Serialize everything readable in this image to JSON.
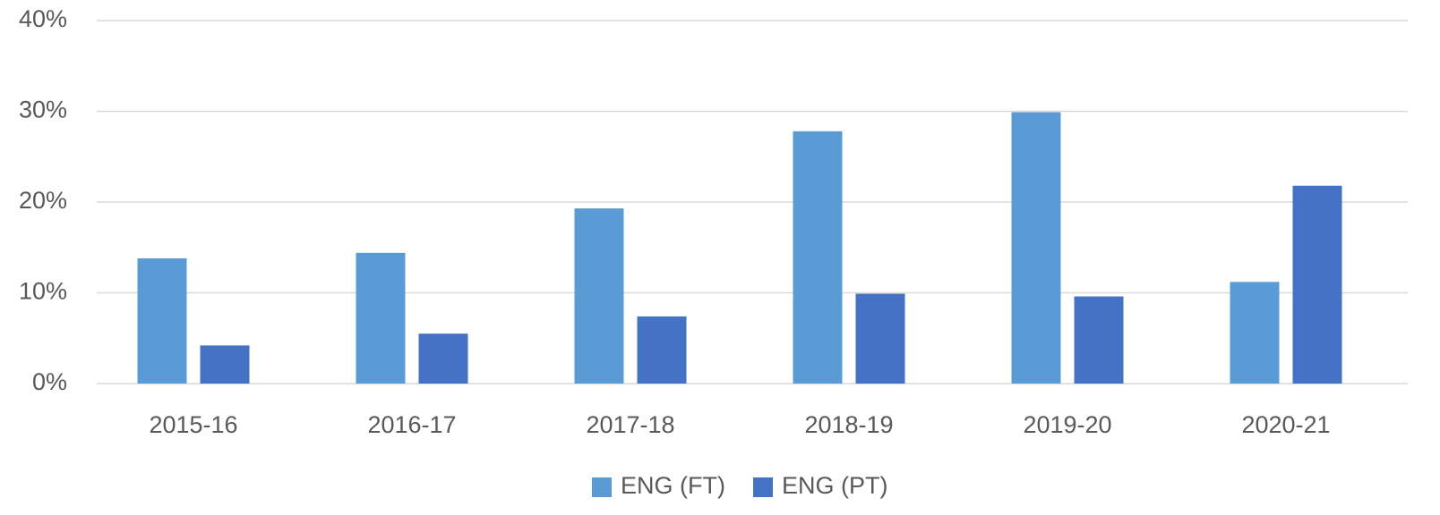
{
  "chart_data": {
    "type": "bar",
    "categories": [
      "2015-16",
      "2016-17",
      "2017-18",
      "2018-19",
      "2019-20",
      "2020-21"
    ],
    "series": [
      {
        "name": "ENG (FT)",
        "color": "#5b9bd5",
        "values": [
          13.8,
          14.4,
          19.3,
          27.8,
          29.9,
          11.2
        ]
      },
      {
        "name": "ENG (PT)",
        "color": "#4472c4",
        "values": [
          4.2,
          5.5,
          7.4,
          9.9,
          9.6,
          21.8
        ]
      }
    ],
    "ylim": [
      0,
      40
    ],
    "yticks": [
      {
        "value": 0,
        "label": "0%"
      },
      {
        "value": 10,
        "label": "10%"
      },
      {
        "value": 20,
        "label": "20%"
      },
      {
        "value": 30,
        "label": "30%"
      },
      {
        "value": 40,
        "label": "40%"
      }
    ],
    "grid": true,
    "legend": "bottom"
  }
}
